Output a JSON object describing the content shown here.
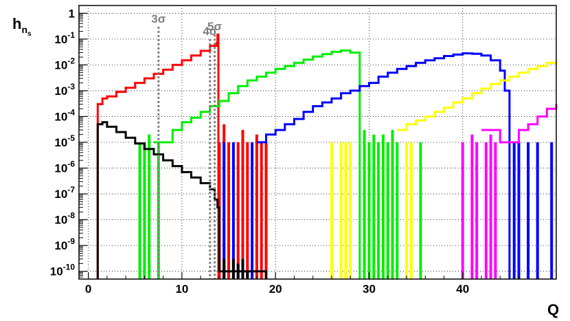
{
  "chart_data": {
    "type": "line",
    "title": "",
    "xlabel": "Q",
    "ylabel": "h",
    "ylabel_sub": "n",
    "ylabel_subsub": "s",
    "xlim": [
      -1,
      50
    ],
    "ylim": [
      5e-11,
      2
    ],
    "log_y": true,
    "grid": true,
    "x_ticks": [
      {
        "value": 0,
        "label": "0"
      },
      {
        "value": 10,
        "label": "10"
      },
      {
        "value": 20,
        "label": "20"
      },
      {
        "value": 30,
        "label": "30"
      },
      {
        "value": 40,
        "label": "40"
      }
    ],
    "y_ticks": [
      {
        "value": 1,
        "base": "1",
        "exp": ""
      },
      {
        "value": 0.1,
        "base": "10",
        "exp": "-1"
      },
      {
        "value": 0.01,
        "base": "10",
        "exp": "-2"
      },
      {
        "value": 0.001,
        "base": "10",
        "exp": "-3"
      },
      {
        "value": 0.0001,
        "base": "10",
        "exp": "-4"
      },
      {
        "value": 1e-05,
        "base": "10",
        "exp": "-5"
      },
      {
        "value": 1e-06,
        "base": "10",
        "exp": "-6"
      },
      {
        "value": 1e-07,
        "base": "10",
        "exp": "-7"
      },
      {
        "value": 1e-08,
        "base": "10",
        "exp": "-8"
      },
      {
        "value": 1e-09,
        "base": "10",
        "exp": "-9"
      },
      {
        "value": 1e-10,
        "base": "10",
        "exp": "-10"
      }
    ],
    "sigma_lines": [
      {
        "x": 7.5,
        "y": 0.3,
        "label": "3σ"
      },
      {
        "x": 13.0,
        "y": 0.1,
        "label": "4σ"
      },
      {
        "x": 13.5,
        "y": 0.15,
        "label": "5σ"
      }
    ],
    "series": [
      {
        "color": "#ff0000",
        "points": [
          [
            1,
            1e-11
          ],
          [
            1,
            0.0003
          ],
          [
            1.5,
            0.0005
          ],
          [
            2,
            0.0006
          ],
          [
            3,
            0.0009
          ],
          [
            4,
            0.0013
          ],
          [
            5,
            0.002
          ],
          [
            6,
            0.003
          ],
          [
            7,
            0.0045
          ],
          [
            8,
            0.0065
          ],
          [
            9,
            0.01
          ],
          [
            10,
            0.015
          ],
          [
            11,
            0.023
          ],
          [
            12,
            0.035
          ],
          [
            13,
            0.055
          ],
          [
            13.7,
            0.07
          ],
          [
            13.8,
            0.15
          ],
          [
            13.9,
            0.15
          ],
          [
            13.9,
            1e-11
          ]
        ],
        "spikes": [
          [
            14,
            1e-05
          ],
          [
            14.5,
            5e-05
          ],
          [
            15,
            1e-05
          ],
          [
            16,
            1e-05
          ],
          [
            16.5,
            3e-05
          ],
          [
            17,
            1e-05
          ],
          [
            18,
            2e-05
          ],
          [
            18.5,
            1e-05
          ],
          [
            19,
            1e-05
          ]
        ]
      },
      {
        "color": "#00ee00",
        "points": [
          [
            7,
            1e-05
          ],
          [
            8,
            1e-05
          ],
          [
            9,
            3e-05
          ],
          [
            10,
            6e-05
          ],
          [
            11,
            9e-05
          ],
          [
            12,
            0.00015
          ],
          [
            13,
            0.00025
          ],
          [
            14,
            0.0004
          ],
          [
            15,
            0.0008
          ],
          [
            16,
            0.0015
          ],
          [
            17,
            0.0025
          ],
          [
            18,
            0.0035
          ],
          [
            19,
            0.005
          ],
          [
            20,
            0.007
          ],
          [
            21,
            0.009
          ],
          [
            22,
            0.012
          ],
          [
            23,
            0.016
          ],
          [
            24,
            0.021
          ],
          [
            25,
            0.026
          ],
          [
            26,
            0.032
          ],
          [
            27,
            0.036
          ],
          [
            28,
            0.03
          ],
          [
            29,
            0.025
          ],
          [
            29,
            1e-11
          ]
        ],
        "spikes": [
          [
            5.5,
            1e-05
          ],
          [
            6,
            1e-05
          ],
          [
            6.5,
            2e-05
          ],
          [
            7.5,
            1e-05
          ],
          [
            29.5,
            3e-05
          ],
          [
            30,
            1e-05
          ],
          [
            30.5,
            2e-05
          ],
          [
            31,
            1e-05
          ],
          [
            31.5,
            2e-05
          ],
          [
            32,
            1e-05
          ],
          [
            32.5,
            3e-05
          ],
          [
            33,
            1e-05
          ],
          [
            35.5,
            1e-05
          ]
        ]
      },
      {
        "color": "#0000ff",
        "points": [
          [
            18,
            1e-05
          ],
          [
            19,
            2e-05
          ],
          [
            20,
            3e-05
          ],
          [
            21,
            5e-05
          ],
          [
            22,
            8e-05
          ],
          [
            23,
            0.00015
          ],
          [
            24,
            0.00025
          ],
          [
            25,
            0.00035
          ],
          [
            26,
            0.0005
          ],
          [
            27,
            0.0008
          ],
          [
            28,
            0.001
          ],
          [
            29,
            0.0015
          ],
          [
            30,
            0.002
          ],
          [
            31,
            0.0035
          ],
          [
            32,
            0.005
          ],
          [
            33,
            0.007
          ],
          [
            34,
            0.009
          ],
          [
            35,
            0.012
          ],
          [
            36,
            0.015
          ],
          [
            37,
            0.018
          ],
          [
            38,
            0.022
          ],
          [
            39,
            0.025
          ],
          [
            40,
            0.028
          ],
          [
            41,
            0.027
          ],
          [
            42,
            0.023
          ],
          [
            43,
            0.015
          ],
          [
            44,
            0.006
          ],
          [
            44.5,
            0.001
          ],
          [
            45,
            1e-05
          ],
          [
            45,
            1e-11
          ]
        ],
        "spikes": [
          [
            14.5,
            1e-05
          ],
          [
            15.5,
            1e-05
          ],
          [
            17.5,
            1e-05
          ],
          [
            45.5,
            1e-05
          ],
          [
            46,
            1e-05
          ],
          [
            47,
            1e-05
          ],
          [
            48,
            1e-05
          ],
          [
            49.5,
            1e-05
          ]
        ]
      },
      {
        "color": "#ffff00",
        "points": [
          [
            33,
            3e-05
          ],
          [
            34,
            5e-05
          ],
          [
            35,
            7e-05
          ],
          [
            36,
            0.0001
          ],
          [
            37,
            0.00015
          ],
          [
            38,
            0.00022
          ],
          [
            39,
            0.00035
          ],
          [
            40,
            0.0005
          ],
          [
            41,
            0.0008
          ],
          [
            42,
            0.0012
          ],
          [
            43,
            0.0018
          ],
          [
            44,
            0.0025
          ],
          [
            45,
            0.0035
          ],
          [
            46,
            0.005
          ],
          [
            47,
            0.007
          ],
          [
            48,
            0.009
          ],
          [
            49,
            0.012
          ],
          [
            50,
            0.015
          ]
        ],
        "spikes": [
          [
            26,
            1e-05
          ],
          [
            27,
            1e-05
          ],
          [
            27.5,
            1e-05
          ],
          [
            28,
            1e-05
          ],
          [
            34,
            1e-05
          ],
          [
            34.5,
            1e-05
          ]
        ]
      },
      {
        "color": "#ff00ff",
        "points": [
          [
            42,
            3e-05
          ],
          [
            43,
            3e-05
          ],
          [
            44,
            1e-05
          ],
          [
            45,
            1e-05
          ],
          [
            46,
            3e-05
          ],
          [
            47,
            5e-05
          ],
          [
            48,
            0.0001
          ],
          [
            49,
            0.0002
          ],
          [
            50,
            0.0003
          ]
        ],
        "spikes": [
          [
            40,
            1e-05
          ],
          [
            41,
            2e-05
          ],
          [
            41.5,
            1e-05
          ],
          [
            42.5,
            1e-05
          ],
          [
            43,
            2e-05
          ],
          [
            43.5,
            1e-05
          ]
        ]
      },
      {
        "color": "#000000",
        "points": [
          [
            1,
            1e-11
          ],
          [
            1,
            5e-05
          ],
          [
            1.5,
            6e-05
          ],
          [
            2,
            4e-05
          ],
          [
            3,
            2.5e-05
          ],
          [
            4,
            1.5e-05
          ],
          [
            5,
            9e-06
          ],
          [
            6,
            5.5e-06
          ],
          [
            7,
            3.4e-06
          ],
          [
            8,
            2e-06
          ],
          [
            9,
            1.2e-06
          ],
          [
            10,
            7e-07
          ],
          [
            11,
            4.3e-07
          ],
          [
            12,
            2.6e-07
          ],
          [
            13,
            1.5e-07
          ],
          [
            13.5,
            6e-08
          ],
          [
            13.8,
            3e-08
          ],
          [
            14,
            1e-10
          ],
          [
            19,
            1e-10
          ],
          [
            19,
            1e-11
          ]
        ],
        "spikes": [
          [
            14.5,
            3e-10
          ],
          [
            15.5,
            3e-10
          ],
          [
            16,
            2e-10
          ],
          [
            16.5,
            3e-10
          ],
          [
            17,
            1e-10
          ]
        ]
      }
    ]
  }
}
